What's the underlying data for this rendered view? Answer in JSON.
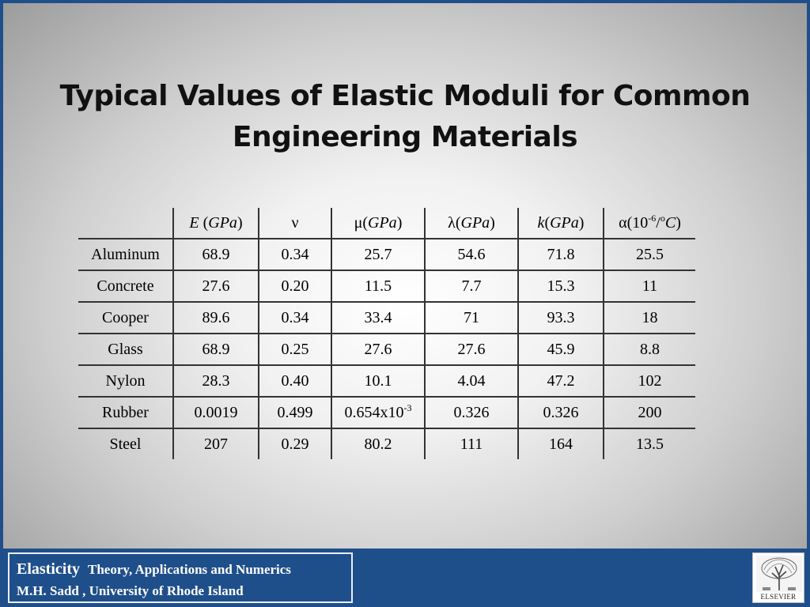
{
  "title": "Typical Values of Elastic Moduli for Common Engineering Materials",
  "table": {
    "headers": [
      {
        "pre": "",
        "ital": "E",
        "post": " (",
        "ital2": "GPa",
        "post2": ")",
        "sup": "",
        "tail": ""
      },
      {
        "pre": "ν",
        "ital": "",
        "post": "",
        "ital2": "",
        "post2": "",
        "sup": "",
        "tail": ""
      },
      {
        "pre": "μ(",
        "ital": "GPa",
        "post": ")",
        "ital2": "",
        "post2": "",
        "sup": "",
        "tail": ""
      },
      {
        "pre": "λ(",
        "ital": "GPa",
        "post": ")",
        "ital2": "",
        "post2": "",
        "sup": "",
        "tail": ""
      },
      {
        "pre": "",
        "ital": "k",
        "post": "(",
        "ital2": "GPa",
        "post2": ")",
        "sup": "",
        "tail": ""
      },
      {
        "pre": "α(10",
        "sup": "-6",
        "mid": "/",
        "sup2": "o",
        "ital": "C",
        "post": ")"
      }
    ],
    "rows": [
      {
        "material": "Aluminum",
        "E": "68.9",
        "nu": "0.34",
        "mu": "25.7",
        "lambda": "54.6",
        "k": "71.8",
        "alpha": "25.5"
      },
      {
        "material": "Concrete",
        "E": "27.6",
        "nu": "0.20",
        "mu": "11.5",
        "lambda": "7.7",
        "k": "15.3",
        "alpha": "11"
      },
      {
        "material": "Cooper",
        "E": "89.6",
        "nu": "0.34",
        "mu": "33.4",
        "lambda": "71",
        "k": "93.3",
        "alpha": "18"
      },
      {
        "material": "Glass",
        "E": "68.9",
        "nu": "0.25",
        "mu": "27.6",
        "lambda": "27.6",
        "k": "45.9",
        "alpha": "8.8"
      },
      {
        "material": "Nylon",
        "E": "28.3",
        "nu": "0.40",
        "mu": "10.1",
        "lambda": "4.04",
        "k": "47.2",
        "alpha": "102"
      },
      {
        "material": "Rubber",
        "E": "0.0019",
        "nu": "0.499",
        "mu": "0.654x10",
        "mu_sup": "-3",
        "lambda": "0.326",
        "k": "0.326",
        "alpha": "200"
      },
      {
        "material": "Steel",
        "E": "207",
        "nu": "0.29",
        "mu": "80.2",
        "lambda": "111",
        "k": "164",
        "alpha": "13.5"
      }
    ]
  },
  "footer": {
    "book_title": "Elasticity",
    "subtitle": "Theory, Applications and Numerics",
    "author_line": "M.H. Sadd , University of Rhode Island",
    "publisher_logo_text": "ELSEVIER"
  }
}
